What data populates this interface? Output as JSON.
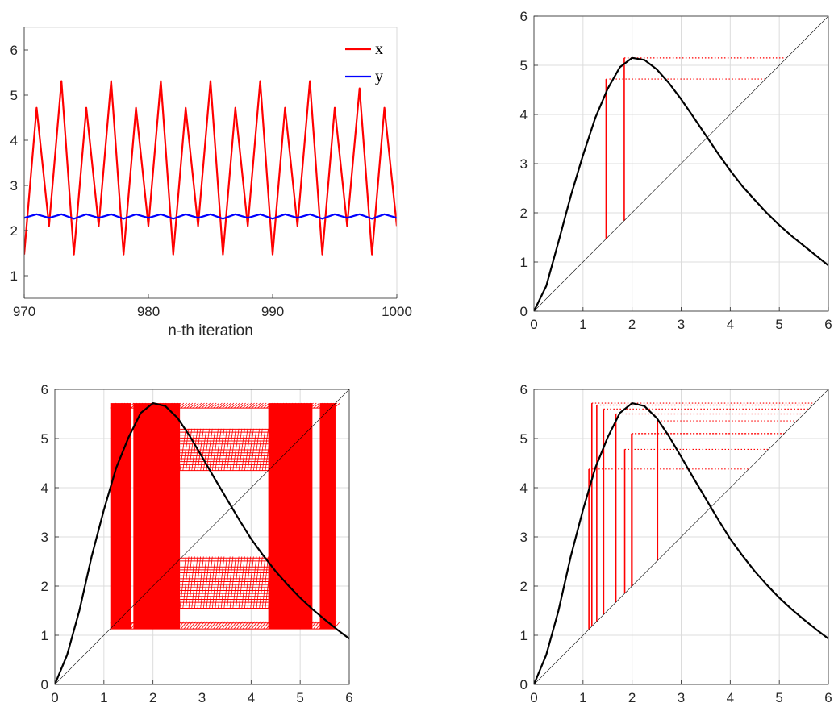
{
  "chart_data": [
    {
      "id": "time-series",
      "type": "line",
      "title": "",
      "xlabel": "n-th iteration",
      "ylabel": "",
      "xlim": [
        970,
        1000
      ],
      "ylim": [
        0.5,
        6.5
      ],
      "xticks": [
        "970",
        "980",
        "990",
        "1000"
      ],
      "yticks": [
        "1",
        "2",
        "3",
        "4",
        "5",
        "6"
      ],
      "legend_position": "top-right",
      "x": [
        970,
        971,
        972,
        973,
        974,
        975,
        976,
        977,
        978,
        979,
        980,
        981,
        982,
        983,
        984,
        985,
        986,
        987,
        988,
        989,
        990,
        991,
        992,
        993,
        994,
        995,
        996,
        997,
        998,
        999,
        1000
      ],
      "series": [
        {
          "name": "x",
          "color": "#ff0000",
          "values": [
            1.47,
            4.72,
            2.1,
            5.31,
            1.47,
            4.72,
            2.1,
            5.31,
            1.47,
            4.72,
            2.1,
            5.31,
            1.47,
            4.72,
            2.1,
            5.31,
            1.47,
            4.72,
            2.1,
            5.31,
            1.47,
            4.72,
            2.1,
            5.31,
            1.47,
            4.72,
            2.1,
            5.15,
            1.47,
            4.72,
            2.1
          ]
        },
        {
          "name": "y",
          "color": "#0000ff",
          "values": [
            2.28,
            2.36,
            2.28,
            2.36,
            2.26,
            2.36,
            2.28,
            2.36,
            2.26,
            2.36,
            2.28,
            2.36,
            2.26,
            2.36,
            2.28,
            2.36,
            2.26,
            2.36,
            2.28,
            2.36,
            2.26,
            2.36,
            2.28,
            2.36,
            2.26,
            2.36,
            2.28,
            2.36,
            2.26,
            2.36,
            2.28
          ]
        }
      ]
    },
    {
      "id": "cobweb-1",
      "type": "line",
      "title": "",
      "xlabel": "",
      "ylabel": "",
      "xlim": [
        0,
        6
      ],
      "ylim": [
        0,
        6
      ],
      "xticks": [
        "0",
        "1",
        "2",
        "3",
        "4",
        "5",
        "6"
      ],
      "yticks": [
        "0",
        "1",
        "2",
        "3",
        "4",
        "5",
        "6"
      ],
      "grid": true,
      "map_curve": {
        "color": "#000000",
        "peak": [
          2.0,
          5.15
        ],
        "x": [
          0,
          0.25,
          0.5,
          0.75,
          1,
          1.25,
          1.5,
          1.75,
          2,
          2.25,
          2.5,
          2.75,
          3,
          3.25,
          3.5,
          3.75,
          4,
          4.25,
          4.5,
          4.75,
          5,
          5.25,
          5.5,
          5.75,
          6
        ],
        "y": [
          0,
          0.51,
          1.41,
          2.34,
          3.17,
          3.93,
          4.52,
          4.96,
          5.15,
          5.11,
          4.92,
          4.64,
          4.31,
          3.95,
          3.58,
          3.21,
          2.86,
          2.54,
          2.26,
          1.99,
          1.75,
          1.53,
          1.33,
          1.13,
          0.93
        ]
      },
      "diagonal": {
        "color": "#000000",
        "from": [
          0,
          0
        ],
        "to": [
          6,
          6
        ]
      },
      "orbit": {
        "color": "#ff0000",
        "points": [
          1.47,
          4.72,
          1.84,
          5.15
        ]
      }
    },
    {
      "id": "cobweb-2",
      "type": "line",
      "title": "",
      "xlabel": "",
      "ylabel": "",
      "xlim": [
        0,
        6
      ],
      "ylim": [
        0,
        6
      ],
      "xticks": [
        "0",
        "1",
        "2",
        "3",
        "4",
        "5",
        "6"
      ],
      "yticks": [
        "0",
        "1",
        "2",
        "3",
        "4",
        "5",
        "6"
      ],
      "grid": true,
      "map_curve": {
        "color": "#000000",
        "peak": [
          2.0,
          5.72
        ],
        "x": [
          0,
          0.25,
          0.5,
          0.75,
          1,
          1.25,
          1.5,
          1.75,
          2,
          2.25,
          2.5,
          2.75,
          3,
          3.25,
          3.5,
          3.75,
          4,
          4.25,
          4.5,
          4.75,
          5,
          5.25,
          5.5,
          5.75,
          6
        ],
        "y": [
          0,
          0.6,
          1.5,
          2.6,
          3.55,
          4.4,
          5.02,
          5.52,
          5.72,
          5.66,
          5.42,
          5.05,
          4.63,
          4.2,
          3.78,
          3.36,
          2.96,
          2.62,
          2.3,
          2.02,
          1.76,
          1.53,
          1.32,
          1.12,
          0.93
        ]
      },
      "diagonal": {
        "color": "#000000",
        "from": [
          0,
          0
        ],
        "to": [
          6,
          6
        ]
      },
      "filled_regions": {
        "color": "#ff0000",
        "x_bands": [
          [
            1.13,
            1.55
          ],
          [
            1.6,
            2.55
          ],
          [
            4.35,
            5.25
          ],
          [
            5.4,
            5.72
          ]
        ],
        "y_range": [
          1.13,
          5.72
        ]
      }
    },
    {
      "id": "cobweb-3",
      "type": "line",
      "title": "",
      "xlabel": "",
      "ylabel": "",
      "xlim": [
        0,
        6
      ],
      "ylim": [
        0,
        6
      ],
      "xticks": [
        "0",
        "1",
        "2",
        "3",
        "4",
        "5",
        "6"
      ],
      "yticks": [
        "0",
        "1",
        "2",
        "3",
        "4",
        "5",
        "6"
      ],
      "grid": true,
      "map_curve": {
        "color": "#000000",
        "peak": [
          2.0,
          5.72
        ],
        "x": [
          0,
          0.25,
          0.5,
          0.75,
          1,
          1.25,
          1.5,
          1.75,
          2,
          2.25,
          2.5,
          2.75,
          3,
          3.25,
          3.5,
          3.75,
          4,
          4.25,
          4.5,
          4.75,
          5,
          5.25,
          5.5,
          5.75,
          6
        ],
        "y": [
          0,
          0.6,
          1.5,
          2.6,
          3.55,
          4.4,
          5.02,
          5.52,
          5.72,
          5.66,
          5.42,
          5.05,
          4.63,
          4.2,
          3.78,
          3.36,
          2.96,
          2.62,
          2.3,
          2.02,
          1.76,
          1.53,
          1.32,
          1.12,
          0.93
        ]
      },
      "diagonal": {
        "color": "#000000",
        "from": [
          0,
          0
        ],
        "to": [
          6,
          6
        ]
      },
      "orbit": {
        "color": "#ff0000",
        "points": [
          1.12,
          4.38,
          2.52,
          5.36,
          1.67,
          5.5,
          1.42,
          5.6,
          1.28,
          5.68,
          1.18,
          5.72,
          2.0,
          5.1,
          1.85,
          4.78,
          1.99,
          5.1,
          1.85
        ]
      }
    }
  ]
}
